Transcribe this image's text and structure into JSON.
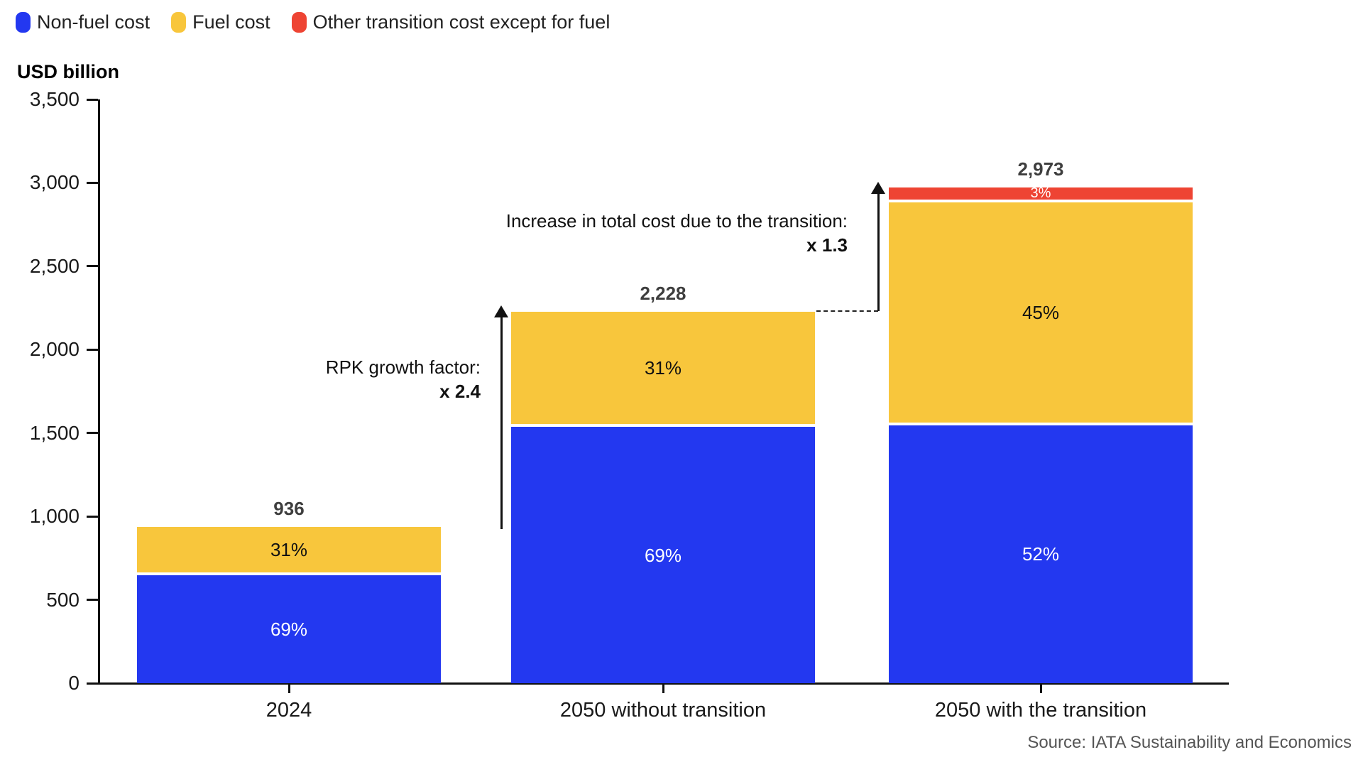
{
  "legend": [
    {
      "label": "Non-fuel cost",
      "color": "#2338F0"
    },
    {
      "label": "Fuel cost",
      "color": "#F8C63C"
    },
    {
      "label": "Other transition cost except for fuel",
      "color": "#EE4433"
    }
  ],
  "axis_title": "USD billion",
  "source": "Source: IATA Sustainability and Economics",
  "chart_data": {
    "type": "bar",
    "stacked": true,
    "title": "",
    "ylabel": "USD billion",
    "xlabel": "",
    "ylim": [
      0,
      3500
    ],
    "grid": false,
    "legend_position": "top-left",
    "ytick_values": [
      0,
      500,
      1000,
      1500,
      2000,
      2500,
      3000,
      3500
    ],
    "ytick_labels": [
      "0",
      "500",
      "1,000",
      "1,500",
      "2,000",
      "2,500",
      "3,000",
      "3,500"
    ],
    "categories": [
      "2024",
      "2050 without transition",
      "2050 with the transition"
    ],
    "totals": [
      936,
      2228,
      2973
    ],
    "total_labels": [
      "936",
      "2,228",
      "2,973"
    ],
    "series": [
      {
        "name": "Non-fuel cost",
        "color": "#2338F0",
        "values": [
          646,
          1537,
          1546
        ],
        "pct_labels": [
          "69%",
          "69%",
          "52%"
        ],
        "label_color": "#ffffff"
      },
      {
        "name": "Fuel cost",
        "color": "#F8C63C",
        "values": [
          290,
          691,
          1338
        ],
        "pct_labels": [
          "31%",
          "31%",
          "45%"
        ],
        "label_color": "#111111"
      },
      {
        "name": "Other transition cost except for fuel",
        "color": "#EE4433",
        "values": [
          0,
          0,
          89
        ],
        "pct_labels": [
          "",
          "",
          "3%"
        ],
        "label_color": "#ffffff"
      }
    ],
    "annotations": [
      {
        "lines": [
          "RPK growth factor:",
          "x 2.4"
        ]
      },
      {
        "lines": [
          "Increase in total cost due to the transition:",
          "x 1.3"
        ]
      }
    ]
  }
}
